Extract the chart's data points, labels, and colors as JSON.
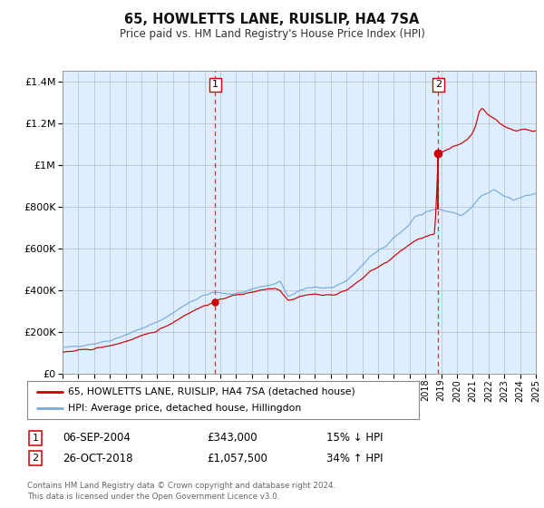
{
  "title": "65, HOWLETTS LANE, RUISLIP, HA4 7SA",
  "subtitle": "Price paid vs. HM Land Registry's House Price Index (HPI)",
  "footer": "Contains HM Land Registry data © Crown copyright and database right 2024.\nThis data is licensed under the Open Government Licence v3.0.",
  "legend_line1": "65, HOWLETTS LANE, RUISLIP, HA4 7SA (detached house)",
  "legend_line2": "HPI: Average price, detached house, Hillingdon",
  "annotation1_label": "1",
  "annotation1_date": "06-SEP-2004",
  "annotation1_price": "£343,000",
  "annotation1_hpi": "15% ↓ HPI",
  "annotation2_label": "2",
  "annotation2_date": "26-OCT-2018",
  "annotation2_price": "£1,057,500",
  "annotation2_hpi": "34% ↑ HPI",
  "hpi_color": "#7aaadd",
  "price_color": "#cc0000",
  "bg_color": "#ddeeff",
  "plot_bg": "#ffffff",
  "ylim": [
    0,
    1450000
  ],
  "start_year": 1995,
  "end_year": 2025,
  "sale1_year": 2004.68,
  "sale1_price": 343000,
  "sale2_year": 2018.82,
  "sale2_price": 1057500
}
